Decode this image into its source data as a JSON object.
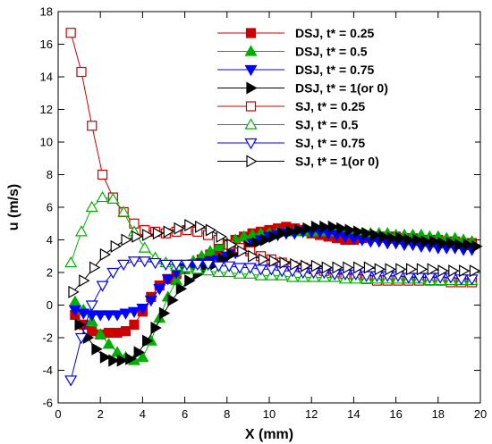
{
  "chart_data": {
    "type": "line",
    "xlabel": "X (mm)",
    "ylabel": "u (m/s)",
    "xlim": [
      0,
      20
    ],
    "ylim": [
      -6,
      18
    ],
    "xticks": [
      0,
      2,
      4,
      6,
      8,
      10,
      12,
      14,
      16,
      18,
      20
    ],
    "yticks": [
      -6,
      -4,
      -2,
      0,
      2,
      4,
      6,
      8,
      10,
      12,
      14,
      16,
      18
    ],
    "grid": false,
    "legend_position": "top-right",
    "series": [
      {
        "name": "DSJ, t* = 0.25",
        "color": "#cc0000",
        "marker": "square",
        "filled": true,
        "x": [
          0.8,
          1.2,
          1.6,
          2.0,
          2.4,
          2.8,
          3.2,
          3.6,
          4.0,
          4.4,
          4.8,
          5.2,
          5.6,
          6.0,
          6.4,
          6.8,
          7.2,
          7.6,
          8.0,
          8.4,
          8.8,
          9.2,
          9.6,
          10.0,
          10.4,
          10.8,
          11.2,
          11.6,
          12.0,
          12.4,
          12.8,
          13.2,
          13.6,
          14.0,
          14.4,
          14.8,
          15.2,
          15.6,
          16.0,
          16.4,
          16.8,
          17.2,
          17.6,
          18.0,
          18.4,
          18.8,
          19.2,
          19.6
        ],
        "y": [
          -0.6,
          -1.2,
          -1.6,
          -1.8,
          -1.7,
          -1.7,
          -1.6,
          -1.2,
          -0.4,
          0.5,
          1.2,
          1.6,
          1.9,
          2.2,
          2.5,
          2.8,
          3.1,
          3.4,
          3.7,
          4.0,
          4.2,
          4.4,
          4.5,
          4.6,
          4.7,
          4.8,
          4.7,
          4.6,
          4.4,
          4.3,
          4.2,
          4.1,
          4.0,
          4.0,
          4.1,
          4.2,
          4.2,
          4.2,
          4.2,
          4.1,
          4.1,
          4.0,
          4.0,
          4.0,
          3.9,
          3.9,
          3.8,
          3.8
        ]
      },
      {
        "name": "DSJ, t* = 0.5",
        "color": "#00b000",
        "marker": "triangle-up",
        "filled": true,
        "x": [
          0.8,
          1.2,
          1.6,
          2.0,
          2.4,
          2.8,
          3.2,
          3.6,
          4.0,
          4.4,
          4.8,
          5.2,
          5.6,
          6.0,
          6.4,
          6.8,
          7.2,
          7.6,
          8.0,
          8.4,
          8.8,
          9.2,
          9.6,
          10.0,
          10.4,
          10.8,
          11.2,
          11.6,
          12.0,
          12.4,
          12.8,
          13.2,
          13.6,
          14.0,
          14.4,
          14.8,
          15.2,
          15.6,
          16.0,
          16.4,
          16.8,
          17.2,
          17.6,
          18.0,
          18.4,
          18.8,
          19.2,
          19.6
        ],
        "y": [
          0.2,
          -0.3,
          -1.0,
          -1.8,
          -2.4,
          -2.9,
          -3.2,
          -3.4,
          -3.2,
          -2.2,
          -0.8,
          0.5,
          1.5,
          2.2,
          2.7,
          3.0,
          3.3,
          3.6,
          3.8,
          4.0,
          4.2,
          4.3,
          4.4,
          4.4,
          4.5,
          4.5,
          4.5,
          4.5,
          4.5,
          4.5,
          4.5,
          4.5,
          4.5,
          4.4,
          4.4,
          4.4,
          4.4,
          4.4,
          4.3,
          4.3,
          4.3,
          4.3,
          4.2,
          4.2,
          4.1,
          4.1,
          4.0,
          3.9
        ]
      },
      {
        "name": "DSJ, t* = 0.75",
        "color": "#0000ff",
        "marker": "triangle-down",
        "filled": true,
        "x": [
          0.8,
          1.2,
          1.6,
          2.0,
          2.4,
          2.8,
          3.2,
          3.6,
          4.0,
          4.4,
          4.8,
          5.2,
          5.6,
          6.0,
          6.4,
          6.8,
          7.2,
          7.6,
          8.0,
          8.4,
          8.8,
          9.2,
          9.6,
          10.0,
          10.4,
          10.8,
          11.2,
          11.6,
          12.0,
          12.4,
          12.8,
          13.2,
          13.6,
          14.0,
          14.4,
          14.8,
          15.2,
          15.6,
          16.0,
          16.4,
          16.8,
          17.2,
          17.6,
          18.0,
          18.4,
          18.8,
          19.2,
          19.6
        ],
        "y": [
          -0.3,
          -0.5,
          -0.6,
          -0.6,
          -0.6,
          -0.6,
          -0.5,
          -0.4,
          -0.2,
          0.3,
          1.0,
          1.6,
          2.0,
          2.3,
          2.5,
          2.6,
          2.7,
          2.8,
          3.0,
          3.2,
          3.5,
          3.8,
          4.0,
          4.2,
          4.3,
          4.4,
          4.4,
          4.5,
          4.5,
          4.5,
          4.4,
          4.3,
          4.2,
          4.1,
          4.0,
          3.9,
          3.9,
          3.8,
          3.8,
          3.7,
          3.7,
          3.6,
          3.6,
          3.5,
          3.5,
          3.5,
          3.4,
          3.4
        ]
      },
      {
        "name": "DSJ, t* = 1(or 0)",
        "color": "#000000",
        "marker": "triangle-right",
        "filled": true,
        "x": [
          1.0,
          1.4,
          1.8,
          2.2,
          2.6,
          3.0,
          3.4,
          3.8,
          4.2,
          4.6,
          5.0,
          5.4,
          5.8,
          6.2,
          6.6,
          7.0,
          7.4,
          7.8,
          8.2,
          8.6,
          9.0,
          9.4,
          9.8,
          10.2,
          10.6,
          11.0,
          11.4,
          11.8,
          12.2,
          12.6,
          13.0,
          13.4,
          13.8,
          14.2,
          14.6,
          15.0,
          15.4,
          15.8,
          16.2,
          16.6,
          17.0,
          17.4,
          17.8,
          18.2,
          18.6,
          19.0,
          19.4,
          19.8
        ],
        "y": [
          -1.2,
          -2.0,
          -2.7,
          -3.2,
          -3.4,
          -3.4,
          -3.3,
          -2.9,
          -2.2,
          -1.4,
          -0.5,
          0.3,
          1.0,
          1.5,
          1.9,
          2.2,
          2.5,
          2.8,
          3.1,
          3.4,
          3.6,
          3.8,
          4.0,
          4.2,
          4.4,
          4.5,
          4.6,
          4.7,
          4.8,
          4.8,
          4.8,
          4.7,
          4.6,
          4.5,
          4.4,
          4.3,
          4.2,
          4.1,
          4.1,
          4.0,
          4.0,
          3.9,
          3.9,
          3.8,
          3.8,
          3.7,
          3.7,
          3.6
        ]
      },
      {
        "name": "SJ, t* = 0.25",
        "color": "#cc0000",
        "marker": "square",
        "filled": false,
        "x": [
          0.6,
          1.1,
          1.6,
          2.1,
          2.6,
          3.1,
          3.6,
          4.1,
          4.6,
          5.1,
          5.6,
          6.1,
          6.6,
          7.1,
          7.6,
          8.1,
          8.6,
          9.1,
          9.6,
          10.1,
          10.6,
          11.1,
          11.6,
          12.1,
          12.6,
          13.1,
          13.6,
          14.1,
          14.6,
          15.1,
          15.6,
          16.1,
          16.6,
          17.1,
          17.6,
          18.1,
          18.6,
          19.1,
          19.6
        ],
        "y": [
          16.7,
          14.3,
          11.0,
          8.0,
          6.6,
          5.7,
          5.0,
          4.6,
          4.5,
          4.4,
          4.5,
          4.6,
          4.5,
          4.3,
          4.0,
          3.7,
          3.5,
          3.3,
          3.0,
          2.8,
          2.6,
          2.4,
          2.3,
          2.2,
          2.1,
          2.0,
          1.9,
          1.8,
          1.6,
          1.5,
          1.5,
          1.5,
          1.5,
          1.5,
          1.5,
          1.5,
          1.4,
          1.4,
          1.4
        ]
      },
      {
        "name": "SJ, t* = 0.5",
        "color": "#00b000",
        "marker": "triangle-up",
        "filled": false,
        "x": [
          0.6,
          1.1,
          1.6,
          2.1,
          2.6,
          3.1,
          3.6,
          4.1,
          4.6,
          5.1,
          5.6,
          6.1,
          6.6,
          7.1,
          7.6,
          8.1,
          8.6,
          9.1,
          9.6,
          10.1,
          10.6,
          11.1,
          11.6,
          12.1,
          12.6,
          13.1,
          13.6,
          14.1,
          14.6,
          15.1,
          15.6,
          16.1,
          16.6,
          17.1,
          17.6,
          18.1,
          18.6,
          19.1,
          19.6
        ],
        "y": [
          2.6,
          4.5,
          6.0,
          6.6,
          6.5,
          5.7,
          4.5,
          3.5,
          2.9,
          2.6,
          2.4,
          2.3,
          2.2,
          2.1,
          2.0,
          2.0,
          1.9,
          1.9,
          1.8,
          1.8,
          1.8,
          1.7,
          1.7,
          1.7,
          1.7,
          1.7,
          1.6,
          1.6,
          1.6,
          1.6,
          1.6,
          1.6,
          1.6,
          1.6,
          1.5,
          1.5,
          1.5,
          1.5,
          1.5
        ]
      },
      {
        "name": "SJ, t* = 0.75",
        "color": "#0000ff",
        "marker": "triangle-down",
        "filled": false,
        "x": [
          0.6,
          1.1,
          1.6,
          2.1,
          2.6,
          3.1,
          3.6,
          4.1,
          4.6,
          5.1,
          5.6,
          6.1,
          6.6,
          7.1,
          7.6,
          8.1,
          8.6,
          9.1,
          9.6,
          10.1,
          10.6,
          11.1,
          11.6,
          12.1,
          12.6,
          13.1,
          13.6,
          14.1,
          14.6,
          15.1,
          15.6,
          16.1,
          16.6,
          17.1,
          17.6,
          18.1,
          18.6,
          19.1,
          19.6
        ],
        "y": [
          -4.6,
          -2.0,
          0.0,
          1.2,
          2.0,
          2.5,
          2.7,
          2.7,
          2.6,
          2.5,
          2.5,
          2.5,
          2.5,
          2.5,
          2.4,
          2.4,
          2.3,
          2.3,
          2.2,
          2.2,
          2.1,
          2.1,
          2.0,
          2.0,
          2.0,
          1.9,
          1.9,
          1.9,
          1.8,
          1.8,
          1.8,
          1.8,
          1.7,
          1.7,
          1.7,
          1.7,
          1.7,
          1.6,
          1.6
        ]
      },
      {
        "name": "SJ, t* = 1(or 0)",
        "color": "#000000",
        "marker": "triangle-right",
        "filled": false,
        "x": [
          0.7,
          1.2,
          1.7,
          2.2,
          2.7,
          3.2,
          3.7,
          4.2,
          4.7,
          5.2,
          5.7,
          6.2,
          6.7,
          7.2,
          7.7,
          8.2,
          8.7,
          9.2,
          9.7,
          10.2,
          10.7,
          11.2,
          11.7,
          12.2,
          12.7,
          13.2,
          13.7,
          14.2,
          14.7,
          15.2,
          15.7,
          16.2,
          16.7,
          17.2,
          17.7,
          18.2,
          18.7,
          19.2,
          19.7
        ],
        "y": [
          0.8,
          1.5,
          2.3,
          3.1,
          3.6,
          4.0,
          4.2,
          4.3,
          4.4,
          4.5,
          4.7,
          4.9,
          4.8,
          4.6,
          4.2,
          3.7,
          3.3,
          3.0,
          2.8,
          2.7,
          2.6,
          2.5,
          2.4,
          2.4,
          2.3,
          2.3,
          2.3,
          2.3,
          2.3,
          2.2,
          2.2,
          2.2,
          2.2,
          2.2,
          2.2,
          2.1,
          2.1,
          2.1,
          2.1
        ]
      }
    ]
  }
}
